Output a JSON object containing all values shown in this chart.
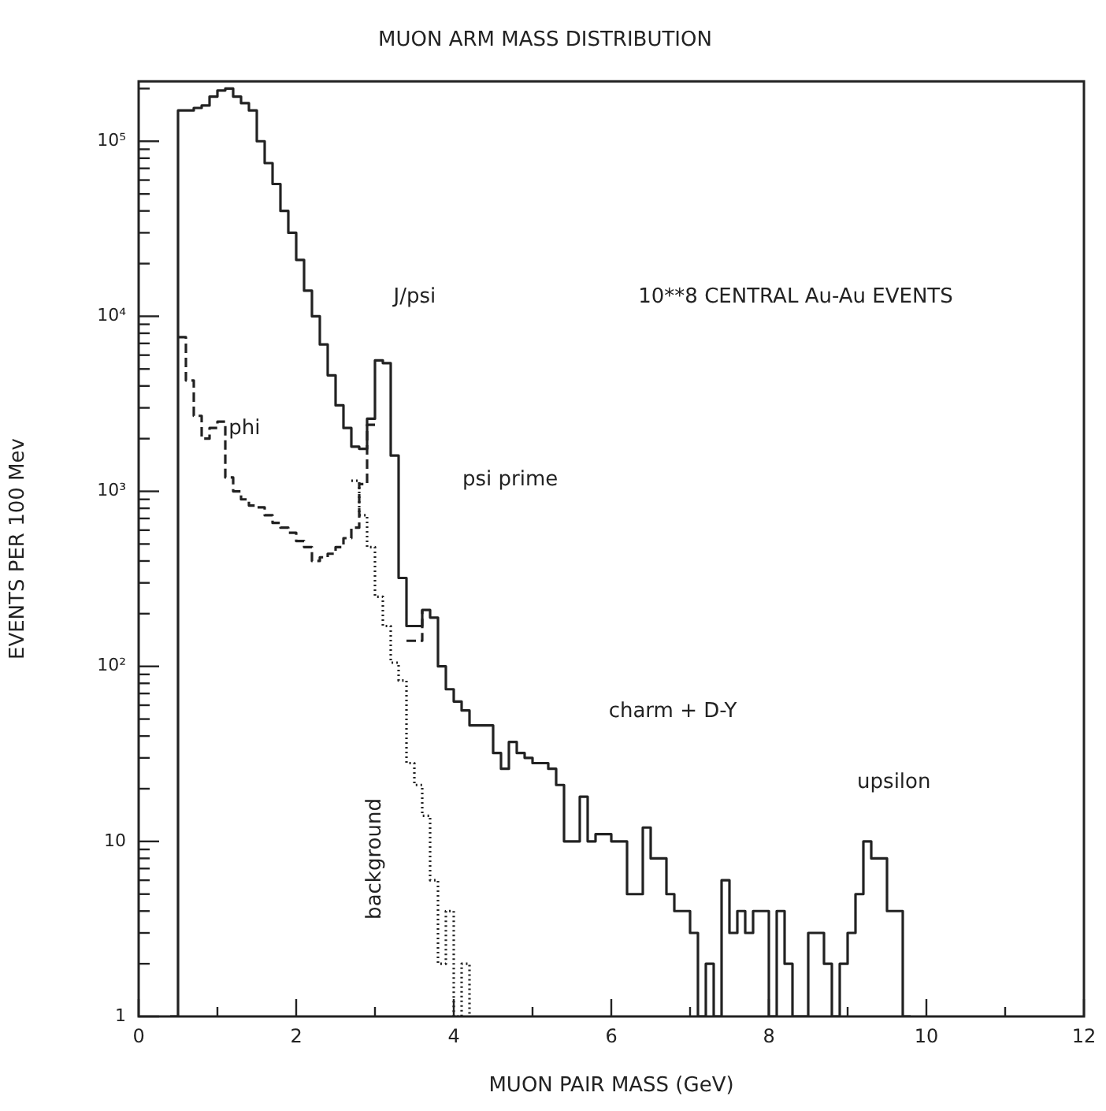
{
  "chart_data": {
    "type": "step",
    "title": "MUON ARM MASS DISTRIBUTION",
    "xlabel": "MUON PAIR MASS (GeV)",
    "ylabel": "EVENTS PER 100 Mev",
    "series": [
      {
        "color": "#222222",
        "line_style": "solid",
        "x": [
          0.4,
          0.5,
          0.6,
          0.7,
          0.8,
          0.9,
          1.0,
          1.1,
          1.2,
          1.3,
          1.4,
          1.5,
          1.6,
          1.7,
          1.8,
          1.9,
          2.0,
          2.1,
          2.2,
          2.3,
          2.4,
          2.5,
          2.6,
          2.7,
          2.8,
          2.9,
          3.0,
          3.1,
          3.2,
          3.3,
          3.4,
          3.5,
          3.6,
          3.7,
          3.8,
          3.9,
          4.0,
          4.1,
          4.2,
          4.3,
          4.4,
          4.5,
          4.6,
          4.7,
          4.8,
          4.9,
          5.0,
          5.1,
          5.2,
          5.3,
          5.4,
          5.5,
          5.6,
          5.7,
          5.8,
          5.9,
          6.0,
          6.1,
          6.2,
          6.3,
          6.4,
          6.5,
          6.6,
          6.7,
          6.8,
          6.9,
          7.0,
          7.1,
          7.2,
          7.3,
          7.4,
          7.5,
          7.6,
          7.7,
          7.8,
          7.9,
          8.0,
          8.1,
          8.2,
          8.3,
          8.4,
          8.5,
          8.6,
          8.7,
          8.8,
          8.9,
          9.0,
          9.1,
          9.2,
          9.3,
          9.4,
          9.5,
          9.6,
          9.7,
          9.8
        ],
        "values": [
          1,
          150000,
          150000,
          155000,
          160000,
          180000,
          195000,
          200000,
          180000,
          165000,
          150000,
          100000,
          75000,
          57000,
          40000,
          30000,
          21000,
          14000,
          10000,
          6900,
          4600,
          3100,
          2300,
          1800,
          1750,
          2600,
          5600,
          5400,
          1600,
          320,
          170,
          170,
          210,
          190,
          100,
          74,
          63,
          56,
          46,
          46,
          46,
          32,
          26,
          37,
          32,
          30,
          28,
          28,
          26,
          21,
          10,
          10,
          18,
          10,
          11,
          11,
          10,
          10,
          5,
          5,
          12,
          8,
          8,
          5,
          4,
          4,
          3,
          1,
          2,
          1,
          6,
          3,
          4,
          3,
          4,
          4,
          1,
          4,
          2,
          1,
          1,
          3,
          3,
          2,
          1,
          2,
          3,
          5,
          10,
          8,
          8,
          4,
          4,
          1,
          1
        ]
      },
      {
        "color": "#222222",
        "line_style": "dashed",
        "x": [
          0.5,
          0.6,
          0.7,
          0.8,
          0.9,
          1.0,
          1.1,
          1.2,
          1.3,
          1.4,
          1.5,
          1.6,
          1.7,
          1.8,
          1.9,
          2.0,
          2.1,
          2.2,
          2.3,
          2.4,
          2.5,
          2.6,
          2.7,
          2.8,
          2.9,
          3.0
        ],
        "values": [
          7600,
          4300,
          2700,
          2000,
          2300,
          2500,
          1200,
          1000,
          900,
          830,
          810,
          730,
          660,
          620,
          580,
          520,
          480,
          400,
          420,
          440,
          480,
          540,
          620,
          1100,
          2400,
          2400
        ]
      },
      {
        "color": "#222222",
        "line_style": "dashed",
        "x": [
          3.4,
          3.6
        ],
        "values": [
          140,
          210
        ]
      },
      {
        "name": "background",
        "color": "#222222",
        "line_style": "dotted",
        "x": [
          2.7,
          2.8,
          2.9,
          3.0,
          3.1,
          3.2,
          3.3,
          3.4,
          3.5,
          3.6,
          3.7,
          3.8,
          3.9,
          4.0,
          4.1,
          4.2
        ],
        "values": [
          1150,
          730,
          480,
          250,
          170,
          105,
          83,
          28,
          21,
          14,
          6,
          2,
          4,
          1,
          2,
          1
        ]
      }
    ],
    "annotations": [
      "10**8 CENTRAL Au-Au EVENTS",
      "phi",
      "J/psi",
      "psi prime",
      "charm + D-Y",
      "upsilon"
    ],
    "xlim": [
      0,
      12
    ],
    "xticks": [
      0,
      {
        "value": 1,
        "label": null
      },
      2,
      {
        "value": 3,
        "label": null
      },
      4,
      {
        "value": 5,
        "label": null
      },
      6,
      {
        "value": 7,
        "label": null
      },
      8,
      {
        "value": 9,
        "label": null
      },
      10,
      {
        "value": 11,
        "label": null
      },
      12
    ],
    "ylim": [
      1,
      220000
    ],
    "yticks": [
      1,
      {
        "value": 2,
        "label": null
      },
      {
        "value": 3,
        "label": null
      },
      {
        "value": 4,
        "label": null
      },
      {
        "value": 5,
        "label": null
      },
      {
        "value": 6,
        "label": null
      },
      {
        "value": 7,
        "label": null
      },
      {
        "value": 8,
        "label": null
      },
      {
        "value": 9,
        "label": null
      },
      10,
      {
        "value": 20,
        "label": null
      },
      {
        "value": 30,
        "label": null
      },
      {
        "value": 40,
        "label": null
      },
      {
        "value": 50,
        "label": null
      },
      {
        "value": 60,
        "label": null
      },
      {
        "value": 70,
        "label": null
      },
      {
        "value": 80,
        "label": null
      },
      {
        "value": 90,
        "label": null
      },
      {
        "value": 100,
        "label": "10²"
      },
      {
        "value": 200,
        "label": null
      },
      {
        "value": 300,
        "label": null
      },
      {
        "value": 400,
        "label": null
      },
      {
        "value": 500,
        "label": null
      },
      {
        "value": 600,
        "label": null
      },
      {
        "value": 700,
        "label": null
      },
      {
        "value": 800,
        "label": null
      },
      {
        "value": 900,
        "label": null
      },
      {
        "value": 1000,
        "label": "10³"
      },
      {
        "value": 2000,
        "label": null
      },
      {
        "value": 3000,
        "label": null
      },
      {
        "value": 4000,
        "label": null
      },
      {
        "value": 5000,
        "label": null
      },
      {
        "value": 6000,
        "label": null
      },
      {
        "value": 7000,
        "label": null
      },
      {
        "value": 8000,
        "label": null
      },
      {
        "value": 9000,
        "label": null
      },
      {
        "value": 10000,
        "label": "10⁴"
      },
      {
        "value": 20000,
        "label": null
      },
      {
        "value": 30000,
        "label": null
      },
      {
        "value": 40000,
        "label": null
      },
      {
        "value": 50000,
        "label": null
      },
      {
        "value": 60000,
        "label": null
      },
      {
        "value": 70000,
        "label": null
      },
      {
        "value": 80000,
        "label": null
      },
      {
        "value": 90000,
        "label": null
      },
      {
        "value": 100000,
        "label": "10⁵"
      },
      {
        "value": 200000,
        "label": null
      }
    ],
    "log": "y",
    "grid": false,
    "legend": false
  }
}
